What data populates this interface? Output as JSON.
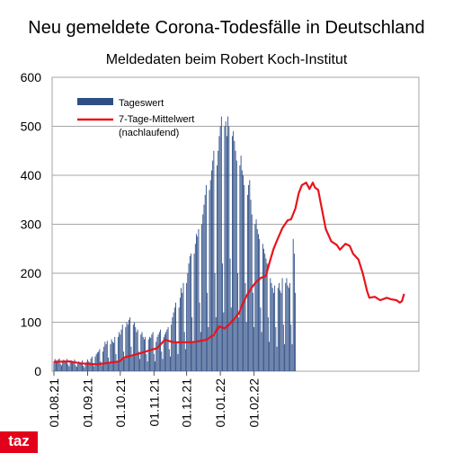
{
  "chart_data": {
    "type": "bar",
    "title": "Neu gemeldete Corona-Todesfälle in Deutschland",
    "subtitle": "Meldedaten beim Robert Koch-Institut",
    "xlabel": "",
    "ylabel": "",
    "ylim": [
      0,
      600
    ],
    "yticks": [
      "0",
      "100",
      "200",
      "300",
      "400",
      "500",
      "600"
    ],
    "xticks": [
      "01.08.21",
      "01.09.21",
      "01.10.21",
      "01.11.21",
      "01.12.21",
      "01.01.22",
      "01.02.22"
    ],
    "x_start": "2021-08-01",
    "grid": true,
    "legend_position": "top-left",
    "colors": {
      "bars": "#2e4e86",
      "line": "#e8141c",
      "grid": "#a6a6a6",
      "logo": "#e2001a"
    },
    "series": [
      {
        "name": "Tageswert",
        "type": "bar",
        "values": [
          20,
          25,
          22,
          18,
          24,
          26,
          15,
          12,
          20,
          24,
          21,
          19,
          25,
          14,
          10,
          18,
          22,
          20,
          17,
          24,
          12,
          9,
          15,
          20,
          18,
          16,
          22,
          11,
          8,
          14,
          19,
          24,
          20,
          18,
          26,
          30,
          14,
          10,
          30,
          35,
          38,
          40,
          45,
          20,
          12,
          40,
          50,
          60,
          55,
          62,
          28,
          15,
          55,
          65,
          60,
          58,
          70,
          35,
          20,
          70,
          80,
          75,
          85,
          95,
          40,
          25,
          90,
          100,
          95,
          105,
          110,
          50,
          30,
          95,
          100,
          90,
          80,
          85,
          40,
          25,
          75,
          80,
          70,
          65,
          70,
          35,
          20,
          65,
          70,
          68,
          75,
          80,
          35,
          20,
          60,
          70,
          75,
          80,
          85,
          40,
          25,
          70,
          75,
          80,
          85,
          90,
          45,
          30,
          95,
          110,
          120,
          130,
          140,
          60,
          35,
          130,
          150,
          170,
          160,
          180,
          80,
          45,
          180,
          200,
          220,
          235,
          240,
          110,
          60,
          240,
          260,
          280,
          275,
          290,
          140,
          80,
          300,
          320,
          340,
          360,
          380,
          160,
          90,
          370,
          390,
          410,
          430,
          450,
          200,
          110,
          420,
          450,
          480,
          500,
          520,
          220,
          120,
          500,
          510,
          480,
          520,
          500,
          230,
          130,
          480,
          490,
          470,
          450,
          430,
          200,
          110,
          420,
          440,
          410,
          400,
          380,
          180,
          100,
          360,
          380,
          390,
          350,
          320,
          160,
          90,
          300,
          310,
          290,
          280,
          270,
          130,
          80,
          260,
          250,
          240,
          230,
          220,
          110,
          60,
          190,
          180,
          170,
          160,
          175,
          90,
          50,
          170,
          180,
          165,
          160,
          190,
          95,
          55,
          180,
          190,
          175,
          170,
          180,
          95,
          55,
          270,
          240,
          160
        ]
      },
      {
        "name": "7-Tage-Mittelwert (nachlaufend)",
        "legend_lines": [
          "7-Tage-Mittelwert",
          "(nachlaufend)"
        ],
        "type": "line",
        "points": [
          [
            0,
            19
          ],
          [
            14,
            20
          ],
          [
            25,
            16
          ],
          [
            40,
            14
          ],
          [
            60,
            20
          ],
          [
            65,
            28
          ],
          [
            80,
            37
          ],
          [
            90,
            44
          ],
          [
            95,
            47
          ],
          [
            102,
            64
          ],
          [
            110,
            59
          ],
          [
            125,
            59
          ],
          [
            130,
            60
          ],
          [
            140,
            64
          ],
          [
            147,
            74
          ],
          [
            152,
            92
          ],
          [
            157,
            87
          ],
          [
            162,
            97
          ],
          [
            170,
            118
          ],
          [
            175,
            145
          ],
          [
            180,
            165
          ],
          [
            185,
            180
          ],
          [
            190,
            190
          ],
          [
            195,
            195
          ],
          [
            198,
            220
          ],
          [
            202,
            250
          ],
          [
            205,
            266
          ],
          [
            210,
            292
          ],
          [
            215,
            308
          ],
          [
            218,
            310
          ],
          [
            222,
            332
          ],
          [
            225,
            363
          ],
          [
            228,
            380
          ],
          [
            232,
            385
          ],
          [
            235,
            372
          ],
          [
            238,
            385
          ],
          [
            240,
            375
          ],
          [
            243,
            370
          ],
          [
            246,
            335
          ],
          [
            250,
            290
          ],
          [
            255,
            265
          ],
          [
            260,
            258
          ],
          [
            263,
            248
          ],
          [
            268,
            260
          ],
          [
            272,
            256
          ],
          [
            275,
            240
          ],
          [
            280,
            228
          ],
          [
            284,
            200
          ],
          [
            288,
            163
          ],
          [
            290,
            150
          ],
          [
            295,
            152
          ],
          [
            300,
            145
          ],
          [
            306,
            150
          ],
          [
            310,
            147
          ],
          [
            315,
            145
          ],
          [
            318,
            140
          ],
          [
            320,
            143
          ],
          [
            322,
            158
          ]
        ]
      }
    ]
  },
  "logo": "taz"
}
